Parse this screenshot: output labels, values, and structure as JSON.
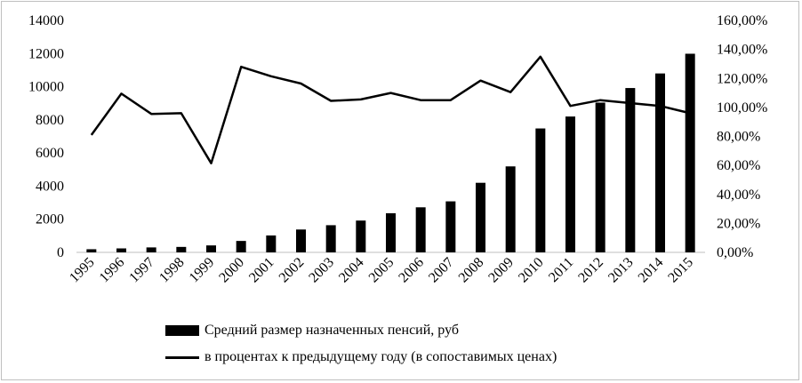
{
  "chart_data": {
    "type": "bar+line",
    "categories": [
      "1995",
      "1996",
      "1997",
      "1998",
      "1999",
      "2000",
      "2001",
      "2002",
      "2003",
      "2004",
      "2005",
      "2006",
      "2007",
      "2008",
      "2009",
      "2010",
      "2011",
      "2012",
      "2013",
      "2014",
      "2015"
    ],
    "series": [
      {
        "name": "Средний размер назначенных пенсий, руб",
        "type": "bar",
        "axis": "left",
        "values": [
          190,
          240,
          300,
          330,
          420,
          690,
          1020,
          1380,
          1640,
          1920,
          2360,
          2720,
          3080,
          4200,
          5190,
          7480,
          8200,
          9040,
          9920,
          10800,
          11990
        ]
      },
      {
        "name": "в процентах к предыдущему году (в сопоставимых ценах)",
        "type": "line",
        "axis": "right",
        "values": [
          81.0,
          109.5,
          95.5,
          96.0,
          61.5,
          128.0,
          121.5,
          116.5,
          104.5,
          105.5,
          110.0,
          105.0,
          105.0,
          118.5,
          110.5,
          135.0,
          101.0,
          105.0,
          103.0,
          101.0,
          96.0
        ]
      }
    ],
    "y_left": {
      "ylim": [
        0,
        14000
      ],
      "ticks": [
        "0",
        "2000",
        "4000",
        "6000",
        "8000",
        "10000",
        "12000",
        "14000"
      ]
    },
    "y_right": {
      "ylim": [
        0,
        160
      ],
      "ticks": [
        "0,00%",
        "20,00%",
        "40,00%",
        "60,00%",
        "80,00%",
        "100,00%",
        "120,00%",
        "140,00%",
        "160,00%"
      ]
    },
    "grid": false,
    "legend_position": "bottom"
  },
  "legend": {
    "bar_label": "Средний размер назначенных пенсий, руб",
    "line_label": "в процентах к предыдущему году (в сопоставимых ценах)"
  },
  "colors": {
    "bar": "#000000",
    "line": "#000000"
  }
}
